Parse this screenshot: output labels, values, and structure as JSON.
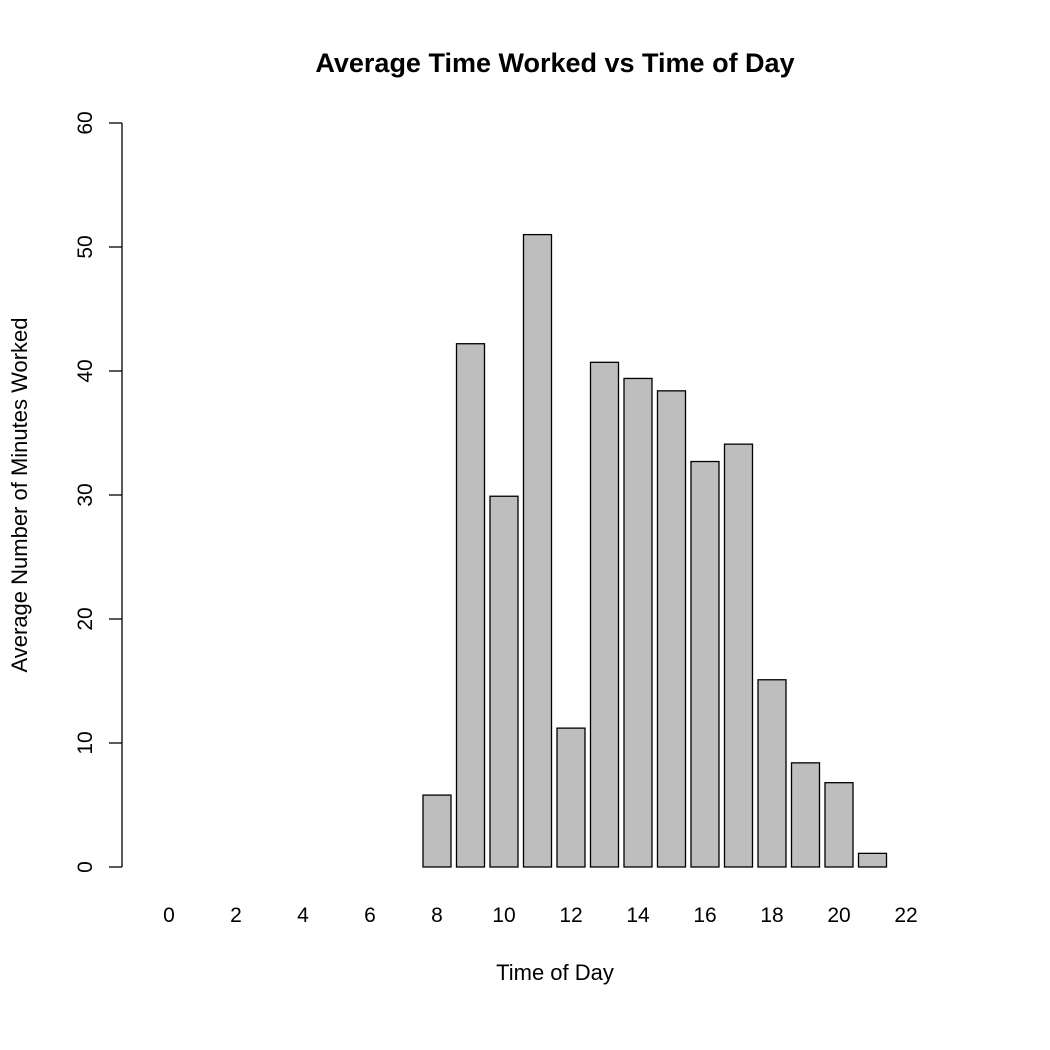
{
  "chart_data": {
    "type": "bar",
    "title": "Average Time Worked vs Time of Day",
    "xlabel": "Time of Day",
    "ylabel": "Average Number of Minutes Worked",
    "ylim": [
      0,
      60
    ],
    "yticks": [
      "0",
      "10",
      "20",
      "30",
      "40",
      "50",
      "60"
    ],
    "xtick_labels": [
      "0",
      "2",
      "4",
      "6",
      "8",
      "10",
      "12",
      "14",
      "16",
      "18",
      "20",
      "22"
    ],
    "categories": [
      "0",
      "1",
      "2",
      "3",
      "4",
      "5",
      "6",
      "7",
      "8",
      "9",
      "10",
      "11",
      "12",
      "13",
      "14",
      "15",
      "16",
      "17",
      "18",
      "19",
      "20",
      "21",
      "22",
      "23"
    ],
    "values": [
      0,
      0,
      0,
      0,
      0,
      0,
      0,
      0,
      5.8,
      42.2,
      29.9,
      51.0,
      11.2,
      40.7,
      39.4,
      38.4,
      32.7,
      34.1,
      15.1,
      8.4,
      6.8,
      1.1,
      0,
      0
    ],
    "bar_color": "#bebebe",
    "grid": false
  }
}
